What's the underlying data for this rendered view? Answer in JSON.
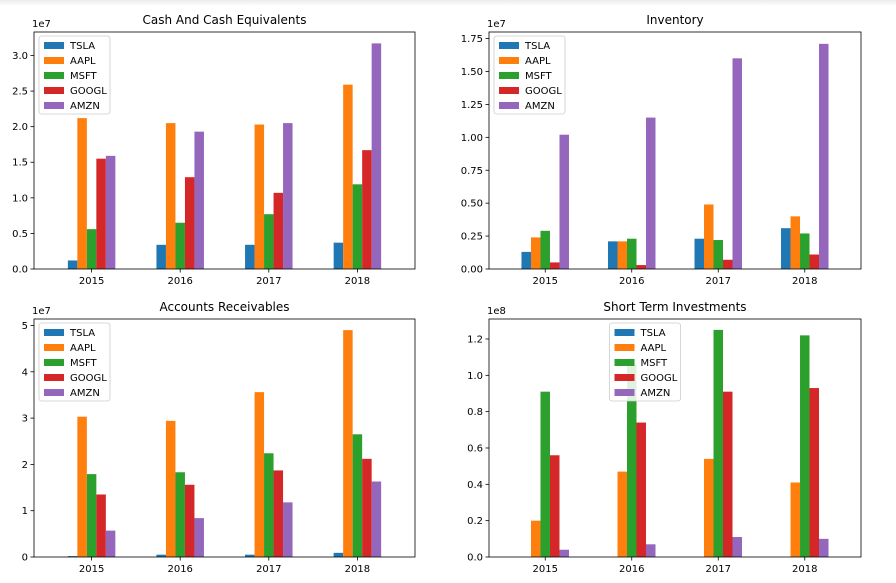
{
  "chart_data": [
    {
      "type": "bar",
      "title": "Cash And Cash Equivalents",
      "categories": [
        "2015",
        "2016",
        "2017",
        "2018"
      ],
      "offset_label": "1e7",
      "multiplier": 10000000,
      "yticks": [
        0.0,
        0.5,
        1.0,
        1.5,
        2.0,
        2.5,
        3.0
      ],
      "ytick_labels": [
        "0.0",
        "0.5",
        "1.0",
        "1.5",
        "2.0",
        "2.5",
        "3.0"
      ],
      "ylim": [
        0,
        3.33
      ],
      "legend_loc": "upper left",
      "series": [
        {
          "name": "TSLA",
          "values": [
            0.12,
            0.34,
            0.34,
            0.37
          ]
        },
        {
          "name": "AAPL",
          "values": [
            2.12,
            2.05,
            2.03,
            2.59
          ]
        },
        {
          "name": "MSFT",
          "values": [
            0.56,
            0.65,
            0.77,
            1.19
          ]
        },
        {
          "name": "GOOGL",
          "values": [
            1.55,
            1.29,
            1.07,
            1.67
          ]
        },
        {
          "name": "AMZN",
          "values": [
            1.59,
            1.93,
            2.05,
            3.17
          ]
        }
      ]
    },
    {
      "type": "bar",
      "title": "Inventory",
      "categories": [
        "2015",
        "2016",
        "2017",
        "2018"
      ],
      "offset_label": "1e7",
      "multiplier": 10000000,
      "yticks": [
        0.0,
        0.25,
        0.5,
        0.75,
        1.0,
        1.25,
        1.5,
        1.75
      ],
      "ytick_labels": [
        "0.00",
        "0.25",
        "0.50",
        "0.75",
        "1.00",
        "1.25",
        "1.50",
        "1.75"
      ],
      "ylim": [
        0,
        1.8
      ],
      "legend_loc": "upper left",
      "series": [
        {
          "name": "TSLA",
          "values": [
            0.13,
            0.21,
            0.23,
            0.31
          ]
        },
        {
          "name": "AAPL",
          "values": [
            0.24,
            0.21,
            0.49,
            0.4
          ]
        },
        {
          "name": "MSFT",
          "values": [
            0.29,
            0.23,
            0.22,
            0.27
          ]
        },
        {
          "name": "GOOGL",
          "values": [
            0.05,
            0.03,
            0.07,
            0.11
          ]
        },
        {
          "name": "AMZN",
          "values": [
            1.02,
            1.15,
            1.6,
            1.71
          ]
        }
      ]
    },
    {
      "type": "bar",
      "title": "Accounts Receivables",
      "categories": [
        "2015",
        "2016",
        "2017",
        "2018"
      ],
      "offset_label": "1e7",
      "multiplier": 10000000,
      "yticks": [
        0,
        1,
        2,
        3,
        4,
        5
      ],
      "ytick_labels": [
        "0",
        "1",
        "2",
        "3",
        "4",
        "5"
      ],
      "ylim": [
        0,
        5.14
      ],
      "legend_loc": "upper left",
      "series": [
        {
          "name": "TSLA",
          "values": [
            0.02,
            0.05,
            0.05,
            0.09
          ]
        },
        {
          "name": "AAPL",
          "values": [
            3.03,
            2.94,
            3.56,
            4.9
          ]
        },
        {
          "name": "MSFT",
          "values": [
            1.79,
            1.83,
            2.24,
            2.65
          ]
        },
        {
          "name": "GOOGL",
          "values": [
            1.35,
            1.56,
            1.87,
            2.12
          ]
        },
        {
          "name": "AMZN",
          "values": [
            0.57,
            0.84,
            1.18,
            1.63
          ]
        }
      ]
    },
    {
      "type": "bar",
      "title": "Short Term Investments",
      "categories": [
        "2015",
        "2016",
        "2017",
        "2018"
      ],
      "offset_label": "1e8",
      "multiplier": 100000000,
      "yticks": [
        0.0,
        0.2,
        0.4,
        0.6,
        0.8,
        1.0,
        1.2
      ],
      "ytick_labels": [
        "0.0",
        "0.2",
        "0.4",
        "0.6",
        "0.8",
        "1.0",
        "1.2"
      ],
      "ylim": [
        0,
        1.31
      ],
      "legend_loc": "upper center",
      "series": [
        {
          "name": "TSLA",
          "values": [
            0.0,
            0.0,
            0.0,
            0.0
          ]
        },
        {
          "name": "AAPL",
          "values": [
            0.2,
            0.47,
            0.54,
            0.41
          ]
        },
        {
          "name": "MSFT",
          "values": [
            0.91,
            1.06,
            1.25,
            1.22
          ]
        },
        {
          "name": "GOOGL",
          "values": [
            0.56,
            0.74,
            0.91,
            0.93
          ]
        },
        {
          "name": "AMZN",
          "values": [
            0.04,
            0.07,
            0.11,
            0.1
          ]
        }
      ]
    }
  ],
  "colors": [
    "#1f77b4",
    "#ff7f0e",
    "#2ca02c",
    "#d62728",
    "#9467bd"
  ]
}
